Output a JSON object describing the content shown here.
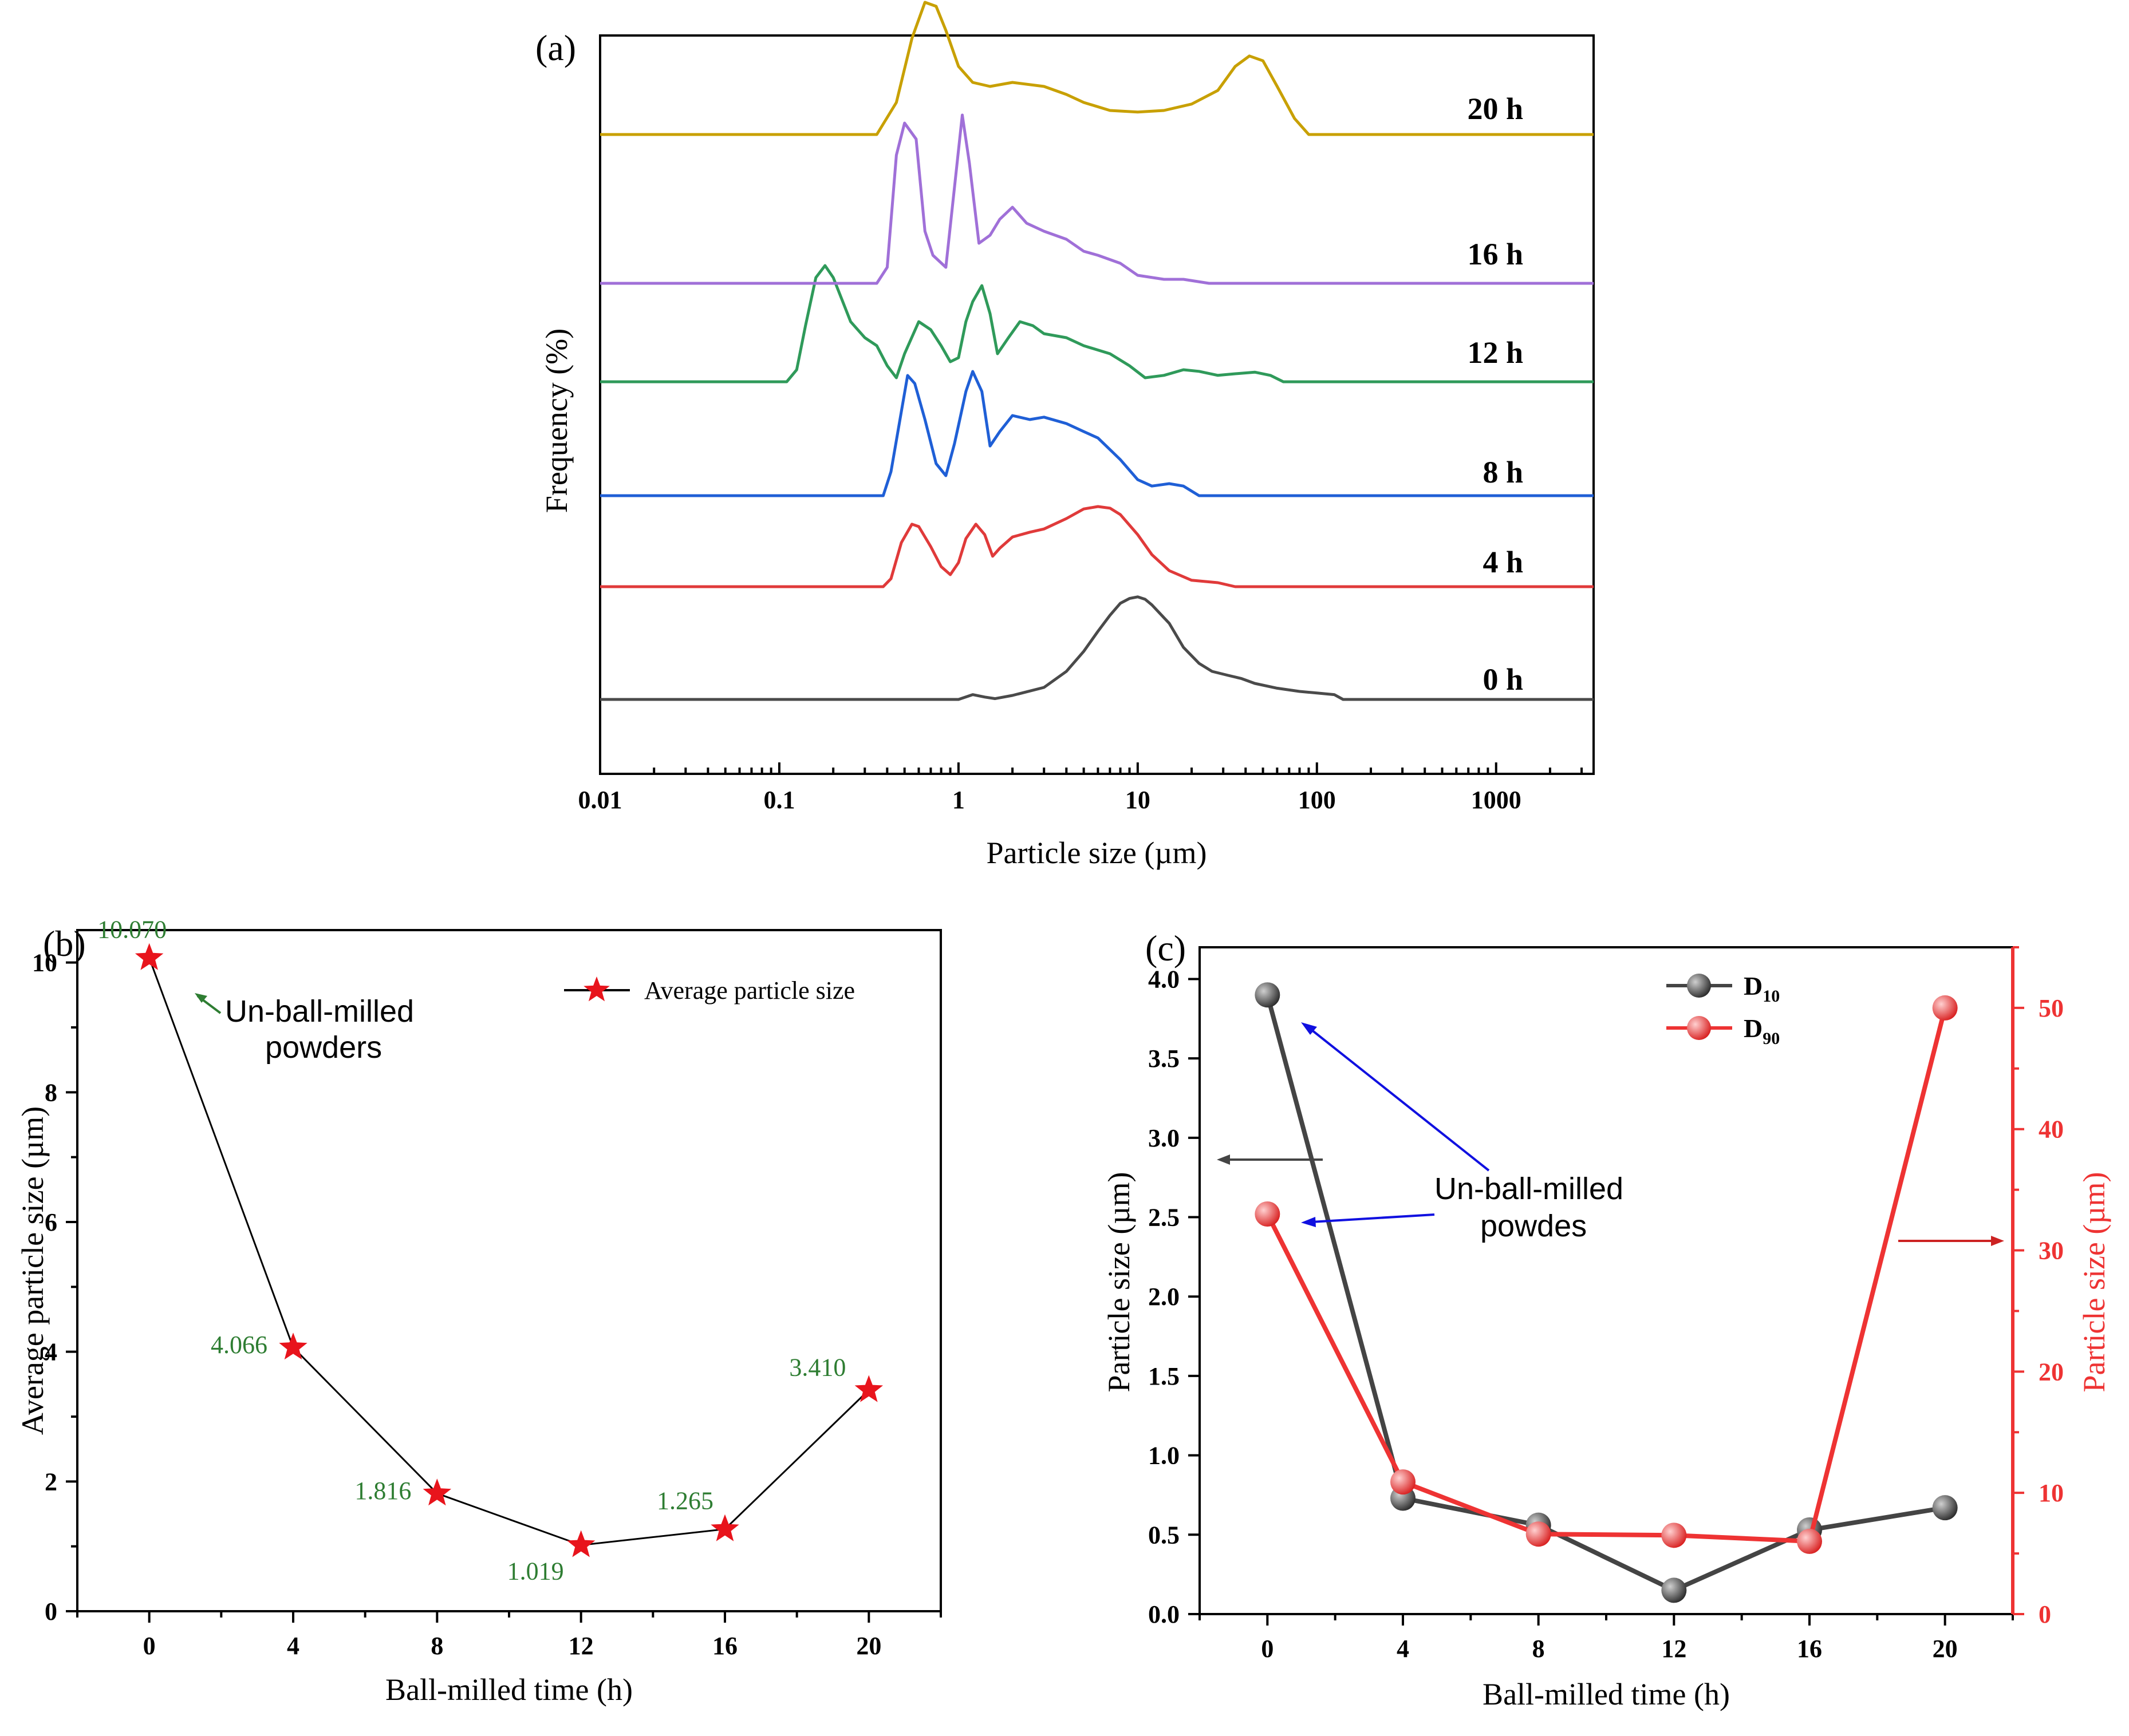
{
  "chart_data": [
    {
      "panel": "(a)",
      "type": "line",
      "xlabel": "Particle size (µm)",
      "ylabel": "Frequency (%)",
      "xscale": "log",
      "xlim": [
        0.01,
        3500
      ],
      "xtick_labels": [
        "0.01",
        "0.1",
        "1",
        "10",
        "100",
        "1000"
      ],
      "xtick_values": [
        0.01,
        0.1,
        1,
        10,
        100,
        1000
      ],
      "series": [
        {
          "name": "0 h",
          "color": "#4a4a4a",
          "points": [
            [
              0.01,
              0
            ],
            [
              1.0,
              0
            ],
            [
              1.2,
              0.06
            ],
            [
              1.4,
              0.03
            ],
            [
              1.6,
              0.01
            ],
            [
              2,
              0.05
            ],
            [
              3,
              0.15
            ],
            [
              4,
              0.35
            ],
            [
              5,
              0.6
            ],
            [
              6,
              0.85
            ],
            [
              7,
              1.05
            ],
            [
              8,
              1.2
            ],
            [
              9,
              1.26
            ],
            [
              10,
              1.28
            ],
            [
              11,
              1.25
            ],
            [
              12,
              1.18
            ],
            [
              15,
              0.95
            ],
            [
              18,
              0.65
            ],
            [
              22,
              0.45
            ],
            [
              26,
              0.35
            ],
            [
              32,
              0.3
            ],
            [
              38,
              0.26
            ],
            [
              45,
              0.2
            ],
            [
              60,
              0.14
            ],
            [
              80,
              0.1
            ],
            [
              100,
              0.08
            ],
            [
              125,
              0.06
            ],
            [
              140,
              0.0
            ],
            [
              3500,
              0
            ]
          ]
        },
        {
          "name": "4 h",
          "color": "#e03a3a",
          "points": [
            [
              0.01,
              0
            ],
            [
              0.38,
              0
            ],
            [
              0.42,
              0.1
            ],
            [
              0.48,
              0.55
            ],
            [
              0.55,
              0.78
            ],
            [
              0.6,
              0.75
            ],
            [
              0.7,
              0.5
            ],
            [
              0.8,
              0.25
            ],
            [
              0.9,
              0.15
            ],
            [
              1.0,
              0.3
            ],
            [
              1.1,
              0.6
            ],
            [
              1.25,
              0.78
            ],
            [
              1.4,
              0.65
            ],
            [
              1.55,
              0.38
            ],
            [
              1.7,
              0.48
            ],
            [
              2,
              0.62
            ],
            [
              2.5,
              0.68
            ],
            [
              3,
              0.72
            ],
            [
              4,
              0.85
            ],
            [
              5,
              0.97
            ],
            [
              6,
              1.0
            ],
            [
              7,
              0.98
            ],
            [
              8,
              0.9
            ],
            [
              10,
              0.65
            ],
            [
              12,
              0.4
            ],
            [
              15,
              0.2
            ],
            [
              20,
              0.08
            ],
            [
              28,
              0.05
            ],
            [
              35,
              0.0
            ],
            [
              3500,
              0
            ]
          ]
        },
        {
          "name": "8 h",
          "color": "#1f5fd6",
          "points": [
            [
              0.01,
              0
            ],
            [
              0.38,
              0
            ],
            [
              0.42,
              0.3
            ],
            [
              0.48,
              1.05
            ],
            [
              0.52,
              1.5
            ],
            [
              0.57,
              1.4
            ],
            [
              0.65,
              0.95
            ],
            [
              0.75,
              0.4
            ],
            [
              0.85,
              0.25
            ],
            [
              0.95,
              0.65
            ],
            [
              1.1,
              1.3
            ],
            [
              1.2,
              1.55
            ],
            [
              1.35,
              1.3
            ],
            [
              1.5,
              0.62
            ],
            [
              1.7,
              0.8
            ],
            [
              2,
              1.0
            ],
            [
              2.5,
              0.95
            ],
            [
              3,
              0.98
            ],
            [
              4,
              0.9
            ],
            [
              5,
              0.8
            ],
            [
              6,
              0.72
            ],
            [
              8,
              0.45
            ],
            [
              10,
              0.2
            ],
            [
              12,
              0.12
            ],
            [
              15,
              0.15
            ],
            [
              18,
              0.12
            ],
            [
              22,
              0.0
            ],
            [
              3500,
              0
            ]
          ]
        },
        {
          "name": "12 h",
          "color": "#2f9a5a",
          "points": [
            [
              0.01,
              0
            ],
            [
              0.11,
              0
            ],
            [
              0.125,
              0.15
            ],
            [
              0.14,
              0.7
            ],
            [
              0.16,
              1.3
            ],
            [
              0.18,
              1.45
            ],
            [
              0.2,
              1.3
            ],
            [
              0.25,
              0.75
            ],
            [
              0.3,
              0.55
            ],
            [
              0.35,
              0.45
            ],
            [
              0.4,
              0.2
            ],
            [
              0.45,
              0.05
            ],
            [
              0.5,
              0.35
            ],
            [
              0.6,
              0.75
            ],
            [
              0.7,
              0.65
            ],
            [
              0.8,
              0.45
            ],
            [
              0.9,
              0.25
            ],
            [
              1.0,
              0.3
            ],
            [
              1.1,
              0.75
            ],
            [
              1.2,
              1.0
            ],
            [
              1.35,
              1.2
            ],
            [
              1.5,
              0.85
            ],
            [
              1.65,
              0.35
            ],
            [
              1.9,
              0.55
            ],
            [
              2.2,
              0.75
            ],
            [
              2.6,
              0.7
            ],
            [
              3,
              0.6
            ],
            [
              4,
              0.55
            ],
            [
              5,
              0.45
            ],
            [
              7,
              0.35
            ],
            [
              9,
              0.2
            ],
            [
              11,
              0.05
            ],
            [
              14,
              0.08
            ],
            [
              18,
              0.15
            ],
            [
              22,
              0.13
            ],
            [
              28,
              0.08
            ],
            [
              35,
              0.1
            ],
            [
              45,
              0.12
            ],
            [
              55,
              0.08
            ],
            [
              65,
              0.0
            ],
            [
              3500,
              0
            ]
          ]
        },
        {
          "name": "16 h",
          "color": "#a070d8",
          "points": [
            [
              0.01,
              0
            ],
            [
              0.35,
              0
            ],
            [
              0.4,
              0.2
            ],
            [
              0.45,
              1.6
            ],
            [
              0.5,
              2.0
            ],
            [
              0.58,
              1.8
            ],
            [
              0.65,
              0.65
            ],
            [
              0.72,
              0.35
            ],
            [
              0.85,
              0.2
            ],
            [
              0.95,
              1.2
            ],
            [
              1.05,
              2.1
            ],
            [
              1.15,
              1.5
            ],
            [
              1.3,
              0.5
            ],
            [
              1.5,
              0.6
            ],
            [
              1.7,
              0.8
            ],
            [
              2,
              0.95
            ],
            [
              2.4,
              0.75
            ],
            [
              3,
              0.65
            ],
            [
              4,
              0.55
            ],
            [
              5,
              0.4
            ],
            [
              6,
              0.35
            ],
            [
              8,
              0.25
            ],
            [
              10,
              0.1
            ],
            [
              14,
              0.05
            ],
            [
              18,
              0.05
            ],
            [
              25,
              0.0
            ],
            [
              3500,
              0
            ]
          ]
        },
        {
          "name": "20 h",
          "color": "#c8a000",
          "points": [
            [
              0.01,
              0
            ],
            [
              0.35,
              0
            ],
            [
              0.45,
              0.4
            ],
            [
              0.55,
              1.2
            ],
            [
              0.65,
              1.65
            ],
            [
              0.75,
              1.6
            ],
            [
              0.85,
              1.3
            ],
            [
              1.0,
              0.85
            ],
            [
              1.2,
              0.65
            ],
            [
              1.5,
              0.6
            ],
            [
              2,
              0.65
            ],
            [
              3,
              0.6
            ],
            [
              4,
              0.5
            ],
            [
              5,
              0.4
            ],
            [
              7,
              0.3
            ],
            [
              10,
              0.28
            ],
            [
              14,
              0.3
            ],
            [
              20,
              0.38
            ],
            [
              28,
              0.55
            ],
            [
              35,
              0.85
            ],
            [
              42,
              0.98
            ],
            [
              50,
              0.92
            ],
            [
              60,
              0.6
            ],
            [
              75,
              0.2
            ],
            [
              90,
              0.0
            ],
            [
              3500,
              0
            ]
          ]
        }
      ]
    },
    {
      "panel": "(b)",
      "type": "line",
      "xlabel": "Ball-milled time (h)",
      "ylabel": "Average particle size (µm)",
      "xlim": [
        -2,
        22
      ],
      "ylim": [
        0,
        10.5
      ],
      "xtick_values": [
        0,
        4,
        8,
        12,
        16,
        20
      ],
      "ytick_values": [
        0,
        2,
        4,
        6,
        8,
        10
      ],
      "x": [
        0,
        4,
        8,
        12,
        16,
        20
      ],
      "values": [
        10.07,
        4.066,
        1.816,
        1.019,
        1.265,
        3.41
      ],
      "data_labels": [
        "10.070",
        "4.066",
        "1.816",
        "1.019",
        "1.265",
        "3.410"
      ],
      "legend": "Average particle size",
      "annotation": [
        "Un-ball-milled",
        "powders"
      ]
    },
    {
      "panel": "(c)",
      "type": "line",
      "xlabel": "Ball-milled time (h)",
      "ylabel_left": "Particle size (µm)",
      "ylabel_right": "Particle size (µm)",
      "xlim": [
        -2,
        22
      ],
      "ylim_left": [
        0,
        4.2
      ],
      "ylim_right": [
        0,
        55
      ],
      "xtick_values": [
        0,
        4,
        8,
        12,
        16,
        20
      ],
      "ytick_left": [
        "0.0",
        "0.5",
        "1.0",
        "1.5",
        "2.0",
        "2.5",
        "3.0",
        "3.5",
        "4.0"
      ],
      "ytick_right": [
        0,
        10,
        20,
        30,
        40,
        50
      ],
      "x": [
        0,
        4,
        8,
        12,
        16,
        20
      ],
      "series": [
        {
          "name": "D10",
          "label_main": "D",
          "label_sub": "10",
          "axis": "left",
          "color": "#444444",
          "values": [
            3.9,
            0.73,
            0.56,
            0.15,
            0.53,
            0.67
          ]
        },
        {
          "name": "D90",
          "label_main": "D",
          "label_sub": "90",
          "axis": "right",
          "color": "#ee3333",
          "values": [
            33,
            10.9,
            6.6,
            6.5,
            6.0,
            50
          ]
        }
      ],
      "annotation": [
        "Un-ball-milled",
        "powdes"
      ]
    }
  ],
  "colors": {
    "star": "#e8141c",
    "green_label": "#2e7d32",
    "arrow_blue": "#1010e0",
    "arrow_red": "#cc2222",
    "arrow_gray": "#444444"
  }
}
